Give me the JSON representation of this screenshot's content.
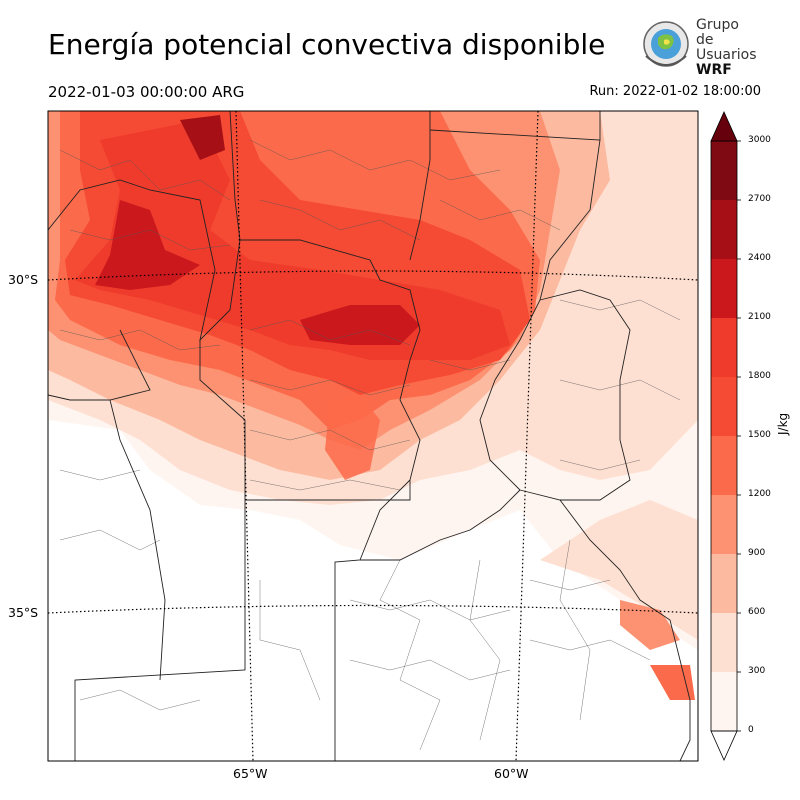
{
  "title": "Energía potencial convectiva disponible",
  "valid_time": "2022-01-03 00:00:00 ARG",
  "run_time": "Run: 2022-01-02 18:00:00",
  "logo": {
    "line1": "Grupo de",
    "line2": "Usuarios",
    "line3": "WRF"
  },
  "latitude_labels": [
    "30°S",
    "35°S"
  ],
  "longitude_labels": [
    "65°W",
    "60°W"
  ],
  "colorbar": {
    "unit": "J/kg",
    "ticks": [
      "0",
      "300",
      "600",
      "900",
      "1200",
      "1500",
      "1800",
      "2100",
      "2400",
      "2700",
      "3000"
    ],
    "colors": [
      "#fff5f0",
      "#fee0d2",
      "#fcbba1",
      "#fc9272",
      "#fb6a4a",
      "#f54a33",
      "#ef3b2c",
      "#cb181d",
      "#a50f15",
      "#7f0a13"
    ],
    "extend": "both",
    "under_color": "#ffffff",
    "over_color": "#67000d"
  }
}
